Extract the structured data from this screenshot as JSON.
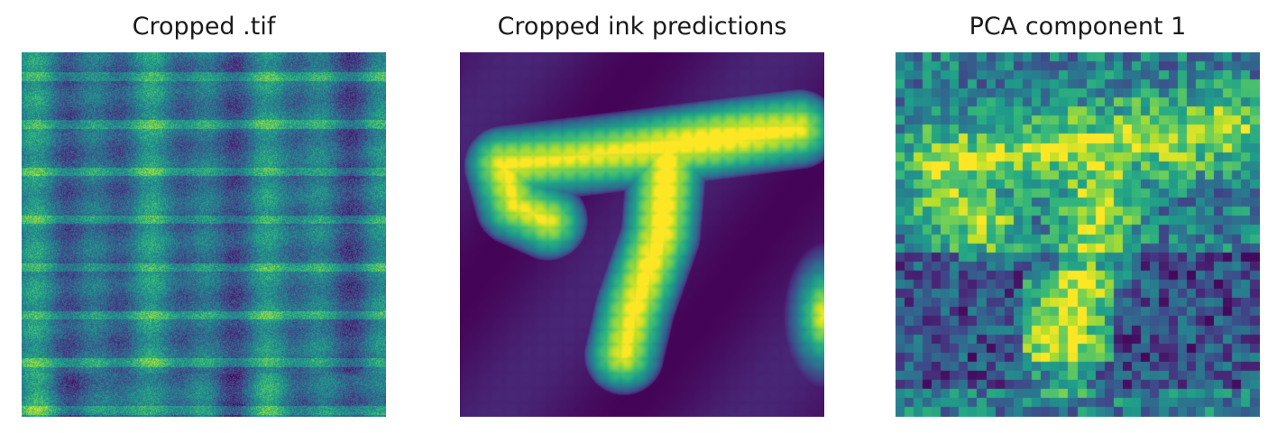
{
  "panels": [
    {
      "title": "Cropped .tif"
    },
    {
      "title": "Cropped ink predictions"
    },
    {
      "title": "PCA component 1"
    }
  ],
  "colormap": "viridis"
}
